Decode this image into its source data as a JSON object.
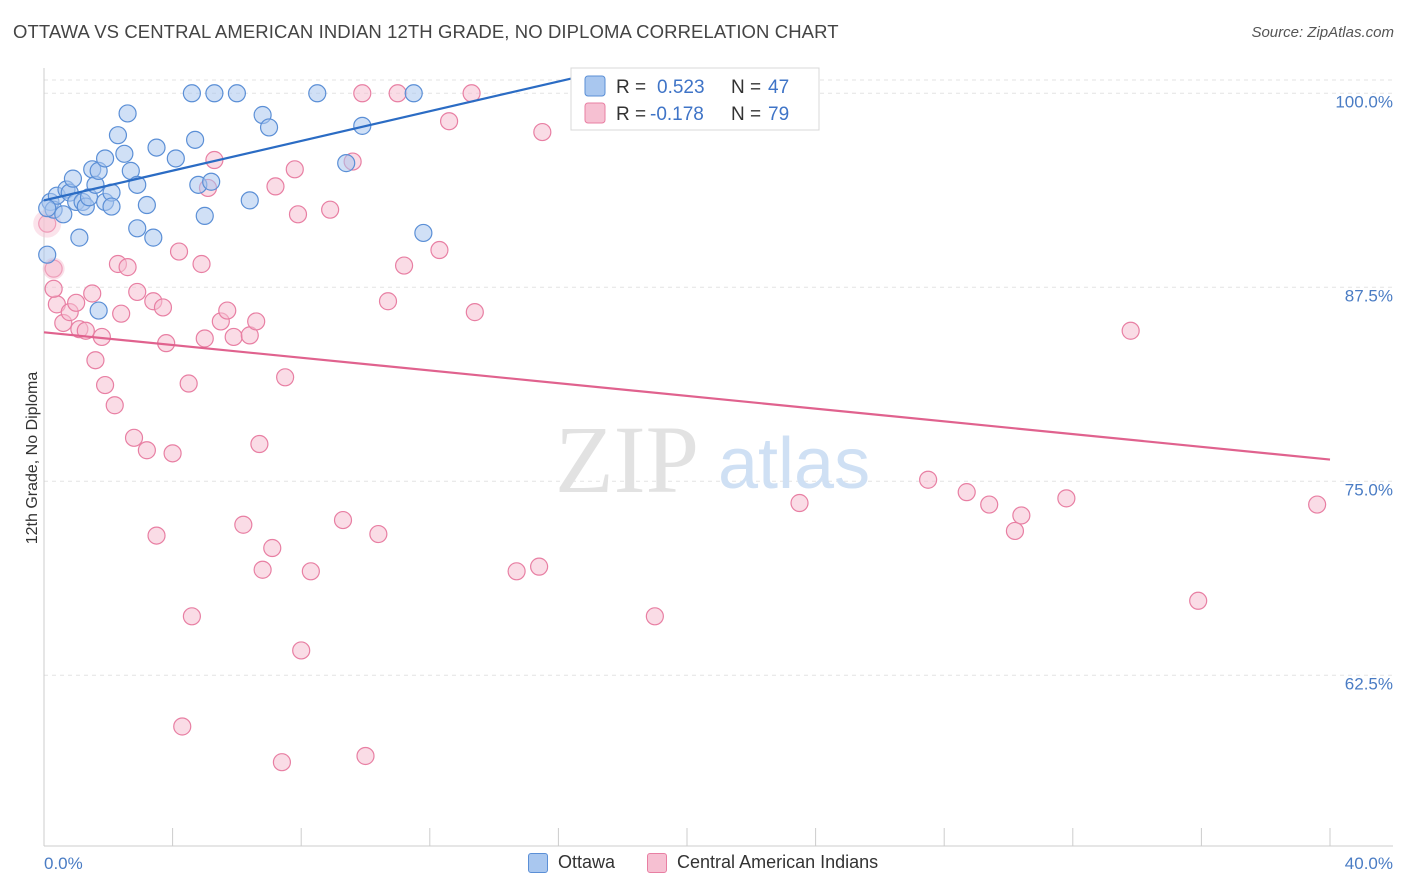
{
  "title": "OTTAWA VS CENTRAL AMERICAN INDIAN 12TH GRADE, NO DIPLOMA CORRELATION CHART",
  "source": "Source: ZipAtlas.com",
  "watermark": {
    "zip": "ZIP",
    "atlas": "atlas"
  },
  "legend_top": {
    "rows": [
      {
        "r_label": "R =",
        "r_value": "0.523",
        "n_label": "N =",
        "n_value": "47"
      },
      {
        "r_label": "R =",
        "r_value": "-0.178",
        "n_label": "N =",
        "n_value": "79"
      }
    ]
  },
  "legend_bottom": {
    "series1": "Ottawa",
    "series2": "Central American Indians"
  },
  "colors": {
    "blue_fill": "#a9c7ef",
    "blue_stroke": "#5b8fd6",
    "blue_line": "#2b6cc4",
    "pink_fill": "#f6c0d2",
    "pink_stroke": "#e87fa3",
    "pink_line": "#e0628e",
    "tick_text": "#4a7cc4",
    "grid": "#e3e3e3"
  },
  "chart_data": {
    "type": "scatter",
    "title": "OTTAWA VS CENTRAL AMERICAN INDIAN 12TH GRADE, NO DIPLOMA CORRELATION CHART",
    "xlabel": "",
    "ylabel": "12th Grade, No Diploma",
    "xlim": [
      0,
      40
    ],
    "ylim": [
      51.5,
      101.5
    ],
    "x_tick_labels": [
      "0.0%",
      "40.0%"
    ],
    "y_ticks": [
      62.5,
      75.0,
      87.5,
      100.0
    ],
    "y_tick_labels": [
      "62.5%",
      "75.0%",
      "87.5%",
      "100.0%"
    ],
    "grid": true,
    "legend_position": "top-center",
    "series": [
      {
        "name": "Ottawa",
        "r": 0.523,
        "n": 47,
        "trend": [
          [
            0.0,
            93.1
          ],
          [
            16.5,
            101.0
          ]
        ],
        "points": [
          [
            0.1,
            89.6
          ],
          [
            0.2,
            93.0
          ],
          [
            0.3,
            92.5
          ],
          [
            0.4,
            93.4
          ],
          [
            0.6,
            92.2
          ],
          [
            0.7,
            93.8
          ],
          [
            0.8,
            93.6
          ],
          [
            0.9,
            94.5
          ],
          [
            1.0,
            93.0
          ],
          [
            1.1,
            90.7
          ],
          [
            1.2,
            93.0
          ],
          [
            1.3,
            92.7
          ],
          [
            1.4,
            93.3
          ],
          [
            1.5,
            95.1
          ],
          [
            1.6,
            94.1
          ],
          [
            1.7,
            95.0
          ],
          [
            1.7,
            86.0
          ],
          [
            1.9,
            95.8
          ],
          [
            1.9,
            93.0
          ],
          [
            2.1,
            93.6
          ],
          [
            2.1,
            92.7
          ],
          [
            2.3,
            97.3
          ],
          [
            2.5,
            96.1
          ],
          [
            2.6,
            98.7
          ],
          [
            2.7,
            95.0
          ],
          [
            2.9,
            94.1
          ],
          [
            2.9,
            91.3
          ],
          [
            3.2,
            92.8
          ],
          [
            3.4,
            90.7
          ],
          [
            3.5,
            96.5
          ],
          [
            4.1,
            95.8
          ],
          [
            4.7,
            97.0
          ],
          [
            4.8,
            94.1
          ],
          [
            5.0,
            92.1
          ],
          [
            5.2,
            94.3
          ],
          [
            4.6,
            100.0
          ],
          [
            5.3,
            100.0
          ],
          [
            6.0,
            100.0
          ],
          [
            6.8,
            98.6
          ],
          [
            7.0,
            97.8
          ],
          [
            6.4,
            93.1
          ],
          [
            8.5,
            100.0
          ],
          [
            9.4,
            95.5
          ],
          [
            9.9,
            97.9
          ],
          [
            11.5,
            100.0
          ],
          [
            11.8,
            91.0
          ],
          [
            0.1,
            92.6
          ]
        ]
      },
      {
        "name": "Central American Indians",
        "r": -0.178,
        "n": 79,
        "trend": [
          [
            0.0,
            84.6
          ],
          [
            40.0,
            76.4
          ]
        ],
        "points": [
          [
            0.1,
            91.6
          ],
          [
            0.3,
            88.7
          ],
          [
            0.4,
            86.4
          ],
          [
            0.6,
            85.2
          ],
          [
            0.8,
            85.9
          ],
          [
            1.0,
            86.5
          ],
          [
            1.1,
            84.8
          ],
          [
            1.3,
            84.7
          ],
          [
            1.5,
            87.1
          ],
          [
            1.6,
            82.8
          ],
          [
            1.8,
            84.3
          ],
          [
            1.9,
            81.2
          ],
          [
            2.2,
            79.9
          ],
          [
            2.3,
            89.0
          ],
          [
            2.4,
            85.8
          ],
          [
            2.6,
            88.8
          ],
          [
            2.8,
            77.8
          ],
          [
            2.9,
            87.2
          ],
          [
            3.2,
            77.0
          ],
          [
            3.4,
            86.6
          ],
          [
            3.5,
            71.5
          ],
          [
            3.7,
            86.2
          ],
          [
            3.8,
            83.9
          ],
          [
            4.0,
            76.8
          ],
          [
            4.2,
            89.8
          ],
          [
            4.3,
            59.2
          ],
          [
            4.5,
            81.3
          ],
          [
            4.6,
            66.3
          ],
          [
            4.9,
            89.0
          ],
          [
            5.0,
            84.2
          ],
          [
            5.1,
            93.9
          ],
          [
            5.3,
            95.7
          ],
          [
            5.5,
            85.3
          ],
          [
            5.7,
            86.0
          ],
          [
            5.9,
            84.3
          ],
          [
            6.2,
            72.2
          ],
          [
            6.4,
            84.4
          ],
          [
            6.6,
            85.3
          ],
          [
            6.7,
            77.4
          ],
          [
            6.8,
            69.3
          ],
          [
            7.1,
            70.7
          ],
          [
            7.2,
            94.0
          ],
          [
            7.4,
            56.9
          ],
          [
            7.5,
            81.7
          ],
          [
            7.8,
            95.1
          ],
          [
            7.9,
            92.2
          ],
          [
            8.0,
            64.1
          ],
          [
            8.3,
            69.2
          ],
          [
            8.9,
            92.5
          ],
          [
            9.3,
            72.5
          ],
          [
            9.6,
            95.6
          ],
          [
            9.9,
            100.0
          ],
          [
            10.0,
            57.3
          ],
          [
            10.4,
            71.6
          ],
          [
            10.7,
            86.6
          ],
          [
            11.0,
            100.0
          ],
          [
            11.2,
            88.9
          ],
          [
            12.3,
            89.9
          ],
          [
            12.6,
            98.2
          ],
          [
            13.3,
            100.0
          ],
          [
            13.4,
            85.9
          ],
          [
            14.7,
            69.2
          ],
          [
            15.4,
            69.5
          ],
          [
            15.5,
            97.5
          ],
          [
            16.7,
            100.0
          ],
          [
            19.0,
            66.3
          ],
          [
            20.5,
            100.0
          ],
          [
            22.5,
            100.0
          ],
          [
            23.5,
            73.6
          ],
          [
            27.5,
            75.1
          ],
          [
            28.7,
            74.3
          ],
          [
            29.4,
            73.5
          ],
          [
            30.2,
            71.8
          ],
          [
            30.4,
            72.8
          ],
          [
            31.8,
            73.9
          ],
          [
            33.8,
            84.7
          ],
          [
            35.9,
            67.3
          ],
          [
            39.6,
            73.5
          ],
          [
            0.3,
            87.4
          ]
        ]
      }
    ]
  }
}
